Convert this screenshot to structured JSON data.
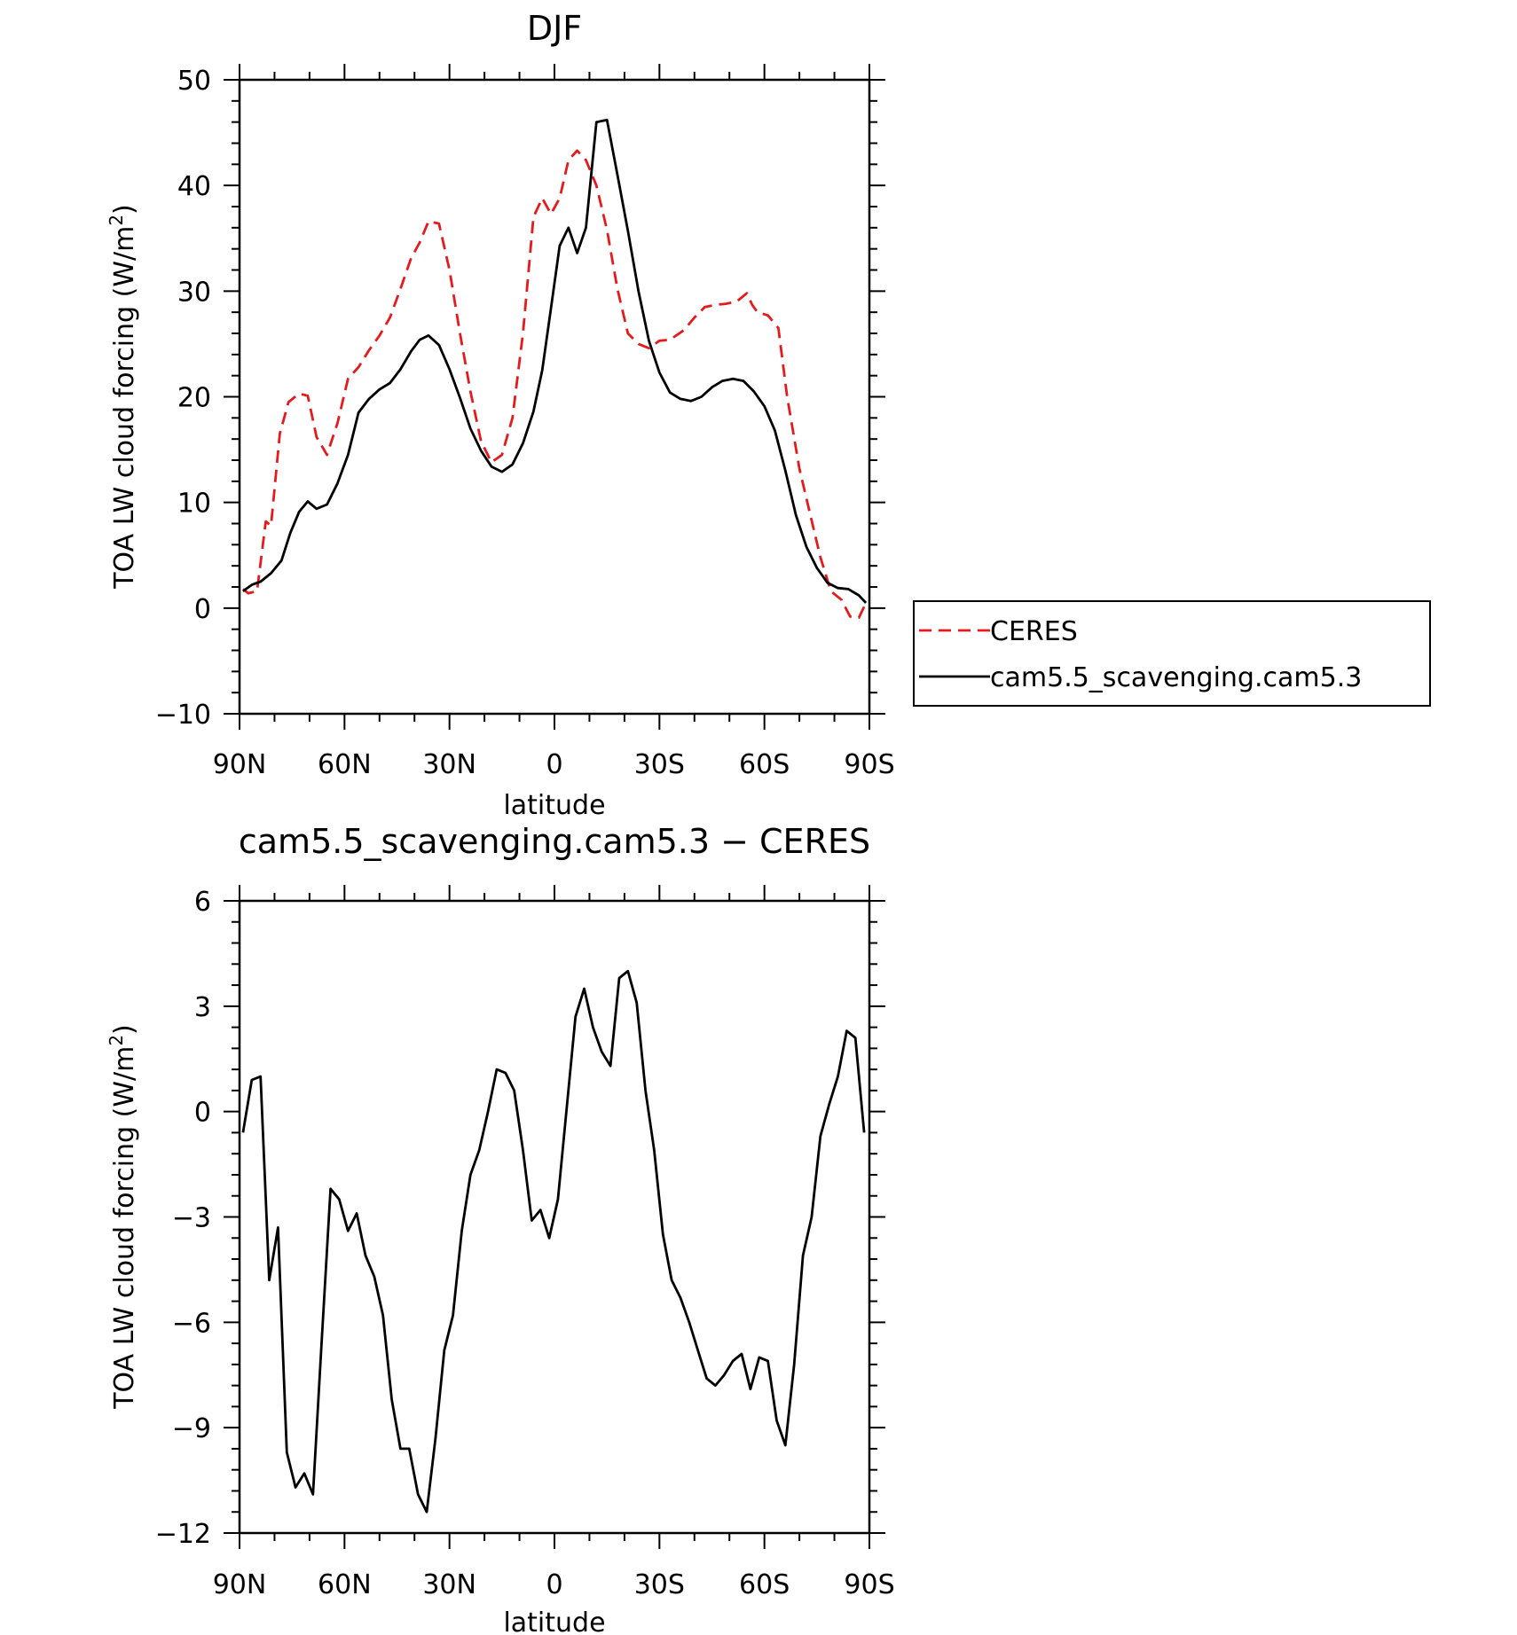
{
  "chart_data": [
    {
      "type": "line",
      "title": "DJF",
      "xlabel": "latitude",
      "ylabel_main": "TOA LW cloud forcing (W/m",
      "ylabel_sup": "2",
      "ylabel_close": ")",
      "xlim": [
        90,
        -90
      ],
      "ylim": [
        -10,
        50
      ],
      "xtick_values": [
        90,
        60,
        30,
        0,
        -30,
        -60,
        -90
      ],
      "xtick_labels": [
        "90N",
        "60N",
        "30N",
        "0",
        "30S",
        "60S",
        "90S"
      ],
      "ytick_values": [
        -10,
        0,
        10,
        20,
        30,
        40,
        50
      ],
      "ytick_labels": [
        "−10",
        "0",
        "10",
        "20",
        "30",
        "40",
        "50"
      ],
      "grid": false,
      "legend_placement": "right",
      "series": [
        {
          "name": "CERES",
          "color": "#e41a1c",
          "dash": "dashed",
          "x": [
            89,
            87.5,
            85,
            82.5,
            81,
            78.5,
            76,
            73,
            70.5,
            68,
            65,
            62,
            59,
            56,
            53,
            50,
            47,
            44,
            41,
            38.5,
            36,
            33,
            30,
            27,
            24,
            21,
            18,
            15,
            12,
            9,
            6,
            3.5,
            1,
            -1.5,
            -4,
            -6.5,
            -9,
            -12,
            -15,
            -18,
            -21,
            -24,
            -27,
            -30,
            -33,
            -37,
            -40,
            -43,
            -46,
            -49,
            -52,
            -55,
            -56.5,
            -58,
            -61,
            -64,
            -66.5,
            -70,
            -73,
            -76,
            -79,
            -82,
            -84.5,
            -87,
            -89
          ],
          "y": [
            1.8,
            1.4,
            1.6,
            8.2,
            7.8,
            16.5,
            19.5,
            20.3,
            20.1,
            16.2,
            14.5,
            17.5,
            21.7,
            22.8,
            24.4,
            25.8,
            27.5,
            30.2,
            33.1,
            34.6,
            36.6,
            36.4,
            32.0,
            26.0,
            20.5,
            15.8,
            13.8,
            14.5,
            18.0,
            26.0,
            37.0,
            38.8,
            37.3,
            38.8,
            42.4,
            43.3,
            42.4,
            40.0,
            35.8,
            30.2,
            26.0,
            25.0,
            24.6,
            25.3,
            25.4,
            26.3,
            27.5,
            28.5,
            28.7,
            28.8,
            29.0,
            29.8,
            28.7,
            28.0,
            27.7,
            26.5,
            20.0,
            13.2,
            9.0,
            4.8,
            1.6,
            0.8,
            -0.8,
            -0.9,
            0.5
          ]
        },
        {
          "name": "cam5.5_scavenging.cam5.3",
          "color": "#000000",
          "dash": "solid",
          "x": [
            89,
            86.5,
            84,
            81,
            78,
            75.5,
            73,
            70.5,
            68,
            65,
            62,
            59,
            56,
            53,
            50,
            47,
            44,
            41,
            38.5,
            36,
            33,
            30,
            27,
            24,
            21,
            18,
            15,
            12,
            9,
            6,
            3.5,
            1,
            -1.5,
            -4,
            -6.5,
            -9,
            -12,
            -15,
            -18,
            -21,
            -24,
            -27,
            -30,
            -33,
            -36,
            -39,
            -42,
            -45,
            -48,
            -51,
            -54,
            -57,
            -60,
            -63,
            -66,
            -69,
            -72,
            -75,
            -78,
            -81,
            -84,
            -87,
            -89
          ],
          "y": [
            1.6,
            2.2,
            2.5,
            3.3,
            4.5,
            7.1,
            9.1,
            10.1,
            9.4,
            9.8,
            11.8,
            14.5,
            18.5,
            19.8,
            20.7,
            21.3,
            22.6,
            24.3,
            25.4,
            25.8,
            24.9,
            22.6,
            19.9,
            17.0,
            14.9,
            13.4,
            12.9,
            13.6,
            15.6,
            18.6,
            22.5,
            28.4,
            34.3,
            36.0,
            33.6,
            36.0,
            46.0,
            46.2,
            41.0,
            35.7,
            30.0,
            25.3,
            22.3,
            20.4,
            19.8,
            19.6,
            20.0,
            20.9,
            21.5,
            21.7,
            21.5,
            20.5,
            19.1,
            16.8,
            13.0,
            8.8,
            5.8,
            3.8,
            2.4,
            1.9,
            1.8,
            1.2,
            0.5
          ]
        }
      ]
    },
    {
      "type": "line",
      "title": "cam5.5_scavenging.cam5.3 − CERES",
      "xlabel": "latitude",
      "ylabel_main": "TOA LW cloud forcing (W/m",
      "ylabel_sup": "2",
      "ylabel_close": ")",
      "xlim": [
        90,
        -90
      ],
      "ylim": [
        -12,
        6
      ],
      "xtick_values": [
        90,
        60,
        30,
        0,
        -30,
        -60,
        -90
      ],
      "xtick_labels": [
        "90N",
        "60N",
        "30N",
        "0",
        "30S",
        "60S",
        "90S"
      ],
      "ytick_values": [
        -12,
        -9,
        -6,
        -3,
        0,
        3,
        6
      ],
      "ytick_labels": [
        "−12",
        "−9",
        "−6",
        "−3",
        "0",
        "3",
        "6"
      ],
      "grid": false,
      "series": [
        {
          "color": "#000000",
          "dash": "solid",
          "x": [
            89,
            86.5,
            84,
            81.5,
            79,
            76.5,
            74,
            71.5,
            69,
            66.5,
            64,
            61.5,
            59,
            56.5,
            54,
            51.5,
            49,
            46.5,
            44,
            41.5,
            39,
            36.5,
            34,
            31.5,
            29,
            26.5,
            24,
            21.5,
            19,
            16.5,
            14,
            11.5,
            9,
            6.5,
            4,
            1.5,
            -1,
            -3.5,
            -6,
            -8.5,
            -11,
            -13.5,
            -16,
            -18.5,
            -21,
            -23.5,
            -26,
            -28.5,
            -31,
            -33.5,
            -36,
            -38.5,
            -41,
            -43.5,
            -46,
            -48.5,
            -51,
            -53.5,
            -56,
            -58.5,
            -61,
            -63.5,
            -66,
            -68.5,
            -71,
            -73.5,
            -76,
            -78.5,
            -81,
            -83.5,
            -86,
            -88.5
          ],
          "y": [
            -0.6,
            0.9,
            1.0,
            -4.8,
            -3.3,
            -9.7,
            -10.7,
            -10.3,
            -10.9,
            -6.5,
            -2.2,
            -2.5,
            -3.4,
            -2.9,
            -4.1,
            -4.7,
            -5.8,
            -8.2,
            -9.6,
            -9.6,
            -10.9,
            -11.4,
            -9.3,
            -6.8,
            -5.8,
            -3.4,
            -1.8,
            -1.1,
            0.0,
            1.2,
            1.1,
            0.6,
            -1.1,
            -3.1,
            -2.8,
            -3.6,
            -2.5,
            0.1,
            2.7,
            3.5,
            2.4,
            1.7,
            1.3,
            3.8,
            4.0,
            3.1,
            0.6,
            -1.1,
            -3.5,
            -4.8,
            -5.3,
            -6.0,
            -6.8,
            -7.6,
            -7.8,
            -7.5,
            -7.1,
            -6.9,
            -7.9,
            -7.0,
            -7.1,
            -8.8,
            -9.5,
            -7.2,
            -4.1,
            -3.0,
            -0.7,
            0.2,
            1.0,
            2.3,
            2.1,
            -0.6
          ]
        }
      ]
    }
  ]
}
